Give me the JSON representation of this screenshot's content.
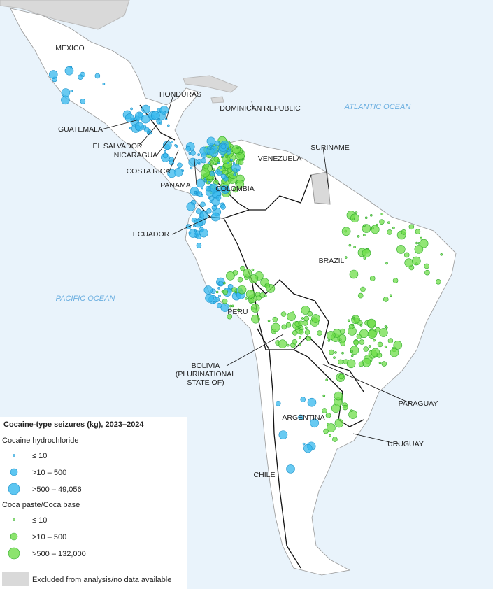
{
  "map": {
    "countries": [
      [
        "MEXICO"
      ],
      [
        "HONDURAS"
      ],
      [
        "DOMINICAN REPUBLIC"
      ],
      [
        "GUATEMALA"
      ],
      [
        "EL SALVADOR"
      ],
      [
        "NICARAGUA"
      ],
      [
        "COSTA RICA"
      ],
      [
        "PANAMA"
      ],
      [
        "SURINAME"
      ],
      [
        "VENEZUELA"
      ],
      [
        "COLOMBIA"
      ],
      [
        "ECUADOR"
      ],
      [
        "BRAZIL"
      ],
      [
        "PERU"
      ],
      [
        "BOLIVIA",
        "(PLURINATIONAL",
        "STATE OF)"
      ],
      [
        "PARAGUAY"
      ],
      [
        "ARGENTINA"
      ],
      [
        "URUGUAY"
      ],
      [
        "CHILE"
      ]
    ],
    "oceans": [
      "ATLANTIC OCEAN",
      "PACIFIC OCEAN"
    ]
  },
  "legend": {
    "title": "Cocaine-type seizures (kg), 2023–2024",
    "groups": [
      {
        "name": "Cocaine hydrochloride",
        "items": [
          "≤ 10",
          ">10 – 500",
          ">500 – 49,056"
        ]
      },
      {
        "name": "Coca paste/Coca base",
        "items": [
          "≤ 10",
          ">10 – 500",
          ">500 – 132,000"
        ]
      }
    ],
    "excluded": "Excluded from analysis/no data available"
  }
}
